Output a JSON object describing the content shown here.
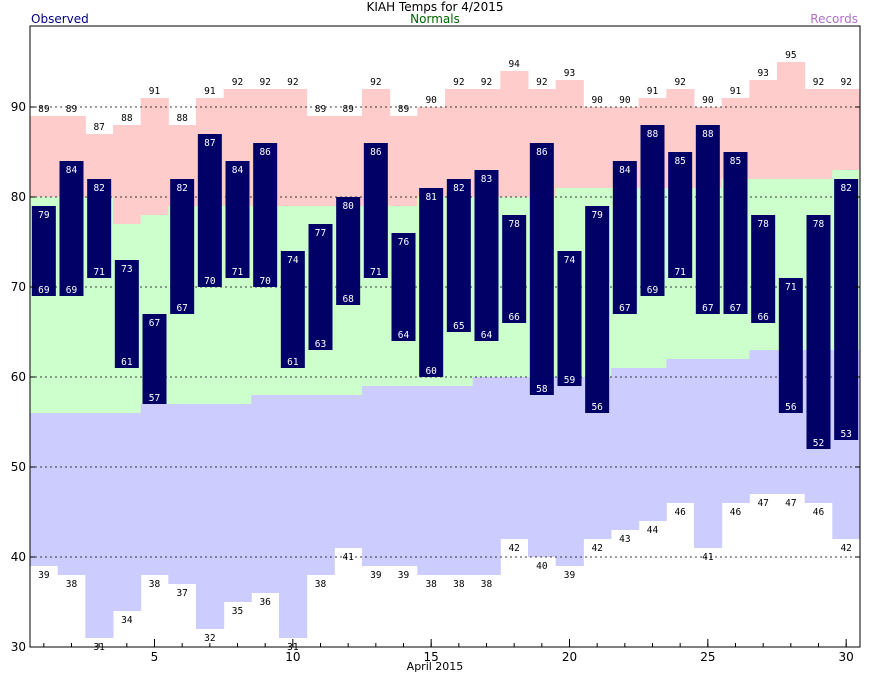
{
  "chart_data": {
    "type": "bar",
    "title": "KIAH Temps for 4/2015",
    "xlabel": "April 2015",
    "legend": {
      "observed": "Observed",
      "normals": "Normals",
      "records": "Records"
    },
    "x_ticks": [
      5,
      10,
      15,
      20,
      25,
      30
    ],
    "y_ticks": [
      30,
      40,
      50,
      60,
      70,
      80,
      90
    ],
    "ylim": [
      30,
      99
    ],
    "xlim": [
      0.5,
      30.5
    ],
    "grid": "dashed horizontal at 40, 60, 70, 80, 90",
    "days": [
      1,
      2,
      3,
      4,
      5,
      6,
      7,
      8,
      9,
      10,
      11,
      12,
      13,
      14,
      15,
      16,
      17,
      18,
      19,
      20,
      21,
      22,
      23,
      24,
      25,
      26,
      27,
      28,
      29,
      30
    ],
    "series": [
      {
        "name": "Observed",
        "high": [
          79,
          84,
          82,
          73,
          67,
          82,
          87,
          84,
          86,
          74,
          77,
          80,
          86,
          76,
          81,
          82,
          83,
          78,
          86,
          74,
          79,
          84,
          88,
          85,
          88,
          85,
          78,
          71,
          78,
          82
        ],
        "low": [
          69,
          69,
          71,
          61,
          57,
          67,
          70,
          71,
          70,
          61,
          63,
          68,
          71,
          64,
          60,
          65,
          64,
          66,
          58,
          59,
          56,
          67,
          69,
          71,
          67,
          67,
          66,
          56,
          52,
          53
        ],
        "color": "#000066"
      },
      {
        "name": "Normals",
        "high": [
          80,
          80,
          80,
          77,
          78,
          79,
          79,
          79,
          79,
          79,
          79,
          79,
          79,
          79,
          80,
          80,
          80,
          80,
          80,
          81,
          81,
          81,
          81,
          81,
          81,
          82,
          82,
          82,
          82,
          83
        ],
        "low": [
          56,
          56,
          56,
          56,
          57,
          57,
          57,
          57,
          58,
          58,
          58,
          58,
          59,
          59,
          59,
          59,
          60,
          60,
          60,
          60,
          60,
          61,
          61,
          62,
          62,
          62,
          63,
          63,
          63,
          63
        ],
        "color": "#ccffcc"
      },
      {
        "name": "Records",
        "high": [
          89,
          89,
          87,
          88,
          91,
          88,
          91,
          92,
          92,
          92,
          89,
          89,
          92,
          89,
          90,
          92,
          92,
          94,
          92,
          93,
          90,
          90,
          91,
          92,
          90,
          91,
          93,
          95,
          92,
          92
        ],
        "low": [
          39,
          38,
          31,
          34,
          38,
          37,
          32,
          35,
          36,
          31,
          38,
          41,
          39,
          39,
          38,
          38,
          38,
          42,
          40,
          39,
          42,
          43,
          44,
          46,
          41,
          46,
          47,
          47,
          46,
          42
        ],
        "high_color": "#ffcccc",
        "low_color": "#ccccff"
      }
    ]
  }
}
